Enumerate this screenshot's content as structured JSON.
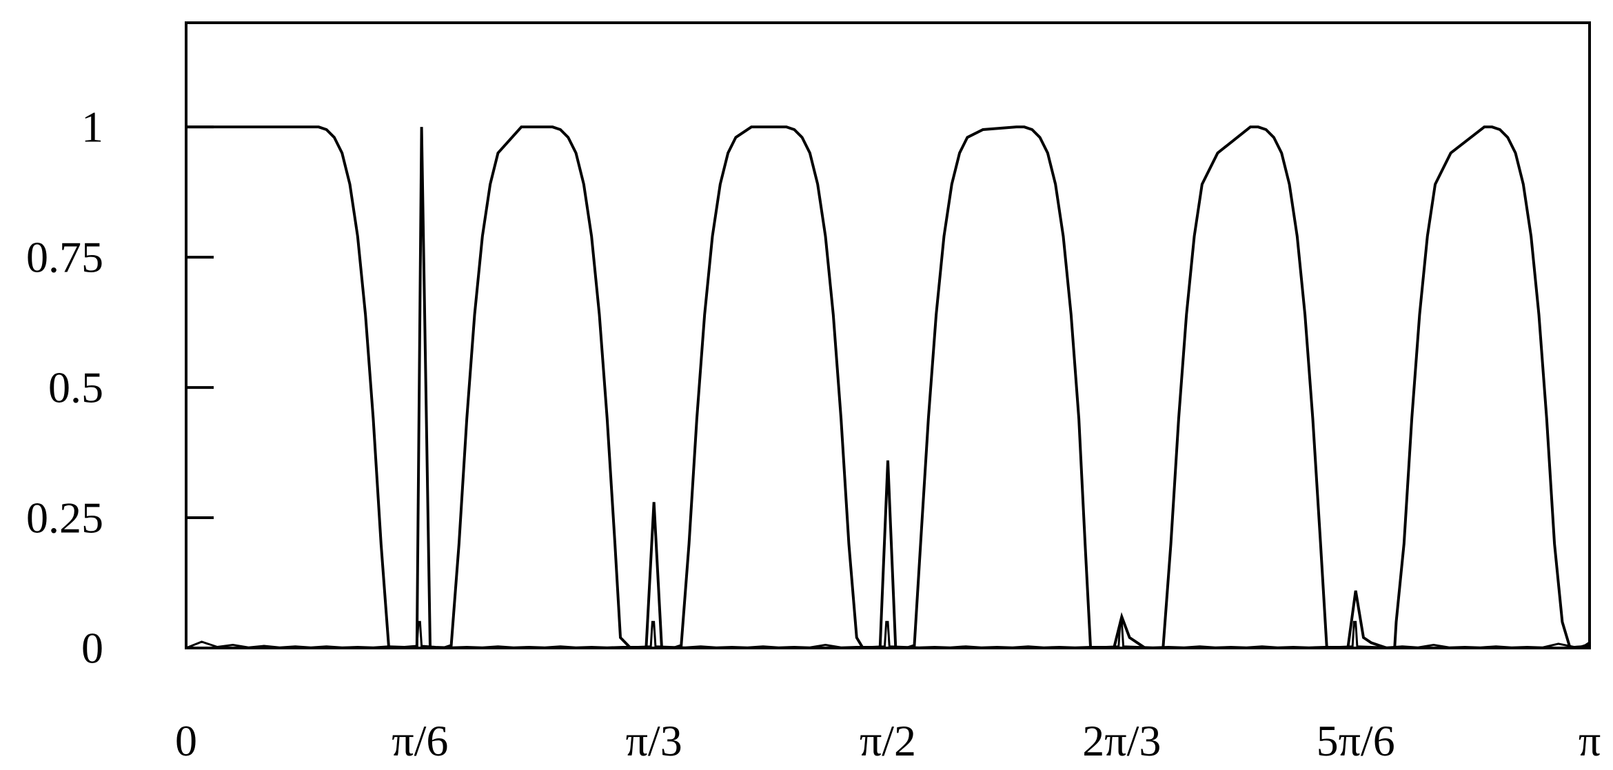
{
  "chart_data": {
    "type": "line",
    "title": "",
    "xlabel": "",
    "ylabel": "",
    "xlim": [
      0,
      180
    ],
    "ylim": [
      0,
      1.2
    ],
    "x_unit_note": "degrees of angle; tick labels printed as multiples of π",
    "x_ticks": [
      {
        "value": 0,
        "label": "0"
      },
      {
        "value": 30,
        "label": "π/6"
      },
      {
        "value": 60,
        "label": "π/3"
      },
      {
        "value": 90,
        "label": "π/2"
      },
      {
        "value": 120,
        "label": "2π/3"
      },
      {
        "value": 150,
        "label": "5π/6"
      },
      {
        "value": 180,
        "label": "π"
      }
    ],
    "y_ticks": [
      {
        "value": 0,
        "label": "0"
      },
      {
        "value": 0.25,
        "label": "0.25"
      },
      {
        "value": 0.5,
        "label": "0.5"
      },
      {
        "value": 0.75,
        "label": "0.75"
      },
      {
        "value": 1,
        "label": "1"
      }
    ],
    "grid": false,
    "legend": "none",
    "series": [
      {
        "x": [
          0,
          17,
          18,
          19,
          20,
          21,
          22,
          23,
          24,
          25,
          25.7,
          26,
          27.6,
          28.6,
          29.6,
          30.2,
          31.3,
          32.3,
          33,
          34,
          35,
          36,
          37,
          38,
          39,
          40,
          43,
          47,
          48,
          49,
          50,
          51,
          52,
          53,
          54,
          55,
          55.7,
          57,
          59,
          60,
          61,
          62.5,
          63.5,
          64.5,
          65.5,
          66.5,
          67.5,
          68.5,
          69.5,
          70.5,
          72.5,
          77,
          78,
          79,
          80,
          81,
          82,
          83,
          84,
          85,
          86,
          86.8,
          87.3,
          89,
          90,
          91,
          92.4,
          93.4,
          94.2,
          95.2,
          96.2,
          97.2,
          98.2,
          99.2,
          100.2,
          102.2,
          106.5,
          107.5,
          108.5,
          109.5,
          110.5,
          111.5,
          112.5,
          113.5,
          114.5,
          115.3,
          116,
          117,
          118,
          119,
          120,
          121,
          122,
          123,
          124,
          125.3,
          126.3,
          127.3,
          128.3,
          129.3,
          130.3,
          132.3,
          136.5,
          137.5,
          138.5,
          139.5,
          140.5,
          141.5,
          142.5,
          143.5,
          144.5,
          145.5,
          146.3,
          147,
          148,
          149,
          150,
          151,
          152,
          153,
          154,
          155,
          155.2,
          156.2,
          157.2,
          158.2,
          159.2,
          160.2,
          162.2,
          166.5,
          167.5,
          168.5,
          169.5,
          170.5,
          171.5,
          172.5,
          173.5,
          174.5,
          175.5,
          176.5,
          177.5,
          178.5,
          179.5,
          180
        ],
        "y": [
          1,
          1,
          0.995,
          0.98,
          0.95,
          0.89,
          0.79,
          0.64,
          0.44,
          0.2,
          0.06,
          0,
          0,
          0,
          0,
          1,
          0,
          0,
          0,
          0.005,
          0.2,
          0.44,
          0.64,
          0.79,
          0.89,
          0.95,
          1,
          1,
          0.995,
          0.98,
          0.95,
          0.89,
          0.79,
          0.64,
          0.44,
          0.2,
          0.02,
          0,
          0,
          0.28,
          0,
          0,
          0.005,
          0.2,
          0.44,
          0.64,
          0.79,
          0.89,
          0.95,
          0.98,
          1,
          1,
          0.995,
          0.98,
          0.95,
          0.89,
          0.79,
          0.64,
          0.44,
          0.2,
          0.02,
          0,
          0,
          0,
          0.36,
          0,
          0,
          0.005,
          0.2,
          0.44,
          0.64,
          0.79,
          0.89,
          0.95,
          0.98,
          0.995,
          1,
          1,
          0.995,
          0.98,
          0.95,
          0.89,
          0.79,
          0.64,
          0.44,
          0.2,
          0,
          0,
          0,
          0,
          0.06,
          0.02,
          0.01,
          0,
          0,
          0,
          0.2,
          0.44,
          0.64,
          0.79,
          0.89,
          0.95,
          1,
          1,
          0.995,
          0.98,
          0.95,
          0.89,
          0.79,
          0.64,
          0.44,
          0.2,
          0,
          0,
          0,
          0,
          0.11,
          0.02,
          0.01,
          0.005,
          0,
          0,
          0.05,
          0.2,
          0.44,
          0.64,
          0.79,
          0.89,
          0.95,
          1,
          1,
          0.995,
          0.98,
          0.95,
          0.89,
          0.79,
          0.64,
          0.44,
          0.2,
          0.05,
          0,
          0,
          0.005,
          0.01
        ]
      },
      {
        "x": [
          0,
          2,
          4,
          6,
          8,
          10,
          12,
          14,
          16,
          18,
          20,
          22,
          24,
          26,
          28,
          29.6,
          29.8,
          30,
          30.2,
          32,
          34,
          36,
          38,
          40,
          42,
          44,
          46,
          48,
          50,
          52,
          54,
          56,
          58,
          59.6,
          59.8,
          60,
          60.2,
          62,
          64,
          66,
          68,
          70,
          72,
          74,
          76,
          78,
          80,
          82,
          84,
          86,
          88,
          89.6,
          89.8,
          90,
          90.2,
          92,
          94,
          96,
          98,
          100,
          102,
          104,
          106,
          108,
          110,
          112,
          114,
          116,
          118,
          119.6,
          119.8,
          120,
          120.2,
          122,
          124,
          126,
          128,
          130,
          132,
          134,
          136,
          138,
          140,
          142,
          144,
          146,
          148,
          149.6,
          149.8,
          150,
          150.2,
          152,
          154,
          156,
          158,
          160,
          162,
          164,
          166,
          168,
          170,
          172,
          174,
          176,
          178,
          180
        ],
        "y": [
          0,
          0.012,
          0.002,
          0.006,
          0.001,
          0.004,
          0.001,
          0.003,
          0.001,
          0.003,
          0.001,
          0.002,
          0.001,
          0.003,
          0.002,
          0.004,
          0.05,
          0.05,
          0.004,
          0.002,
          0.001,
          0.002,
          0.001,
          0.003,
          0.001,
          0.002,
          0.001,
          0.003,
          0.001,
          0.002,
          0.001,
          0.002,
          0.002,
          0.003,
          0.05,
          0.05,
          0.003,
          0.002,
          0.001,
          0.003,
          0.001,
          0.002,
          0.001,
          0.003,
          0.001,
          0.002,
          0.001,
          0.006,
          0.001,
          0.002,
          0.002,
          0.003,
          0.05,
          0.05,
          0.003,
          0.002,
          0.001,
          0.002,
          0.001,
          0.003,
          0.001,
          0.002,
          0.001,
          0.003,
          0.001,
          0.002,
          0.001,
          0.002,
          0.002,
          0.003,
          0.05,
          0.05,
          0.003,
          0.002,
          0.001,
          0.002,
          0.001,
          0.003,
          0.001,
          0.002,
          0.001,
          0.003,
          0.001,
          0.002,
          0.001,
          0.002,
          0.002,
          0.003,
          0.05,
          0.05,
          0.003,
          0.002,
          0.001,
          0.003,
          0.001,
          0.006,
          0.001,
          0.002,
          0.001,
          0.003,
          0.001,
          0.002,
          0.001,
          0.008,
          0.002,
          0.004
        ]
      }
    ]
  }
}
